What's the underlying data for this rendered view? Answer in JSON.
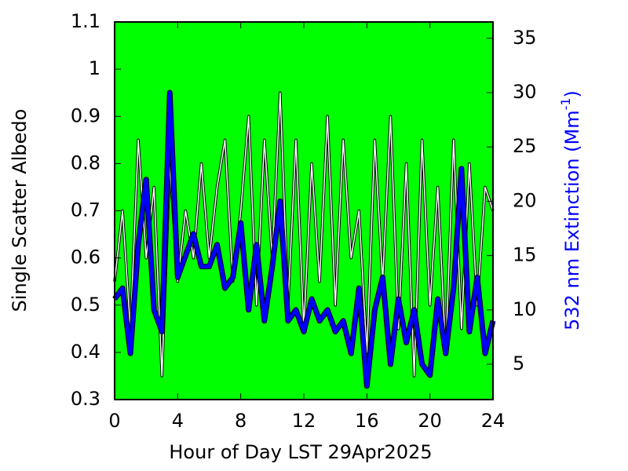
{
  "chart_data": {
    "type": "line",
    "xlabel": "Hour of Day LST 29Apr2025",
    "ylabel": "Single Scatter Albedo",
    "y2label": {
      "text": "532 nm Extinction (Mm",
      "sup": "-1",
      "end": ")"
    },
    "background": "#00ff00",
    "x": [
      0,
      0.5,
      1,
      1.5,
      2,
      2.5,
      3,
      3.5,
      4,
      4.5,
      5,
      5.5,
      6,
      6.5,
      7,
      7.5,
      8,
      8.5,
      9,
      9.5,
      10,
      10.5,
      11,
      11.5,
      12,
      12.5,
      13,
      13.5,
      14,
      14.5,
      15,
      15.5,
      16,
      16.5,
      17,
      17.5,
      18,
      18.5,
      19,
      19.5,
      20,
      20.5,
      21,
      21.5,
      22,
      22.5,
      23,
      23.5,
      24
    ],
    "xlim": [
      0,
      24
    ],
    "xticks": [
      0,
      4,
      8,
      12,
      16,
      20,
      24
    ],
    "ylim": [
      0.3,
      1.1
    ],
    "yticks": [
      0.3,
      0.4,
      0.5,
      0.6,
      0.7,
      0.8,
      0.9,
      1,
      1.1
    ],
    "y2lim": [
      1.75,
      36.5
    ],
    "y2ticks": [
      5,
      10,
      15,
      20,
      25,
      30,
      35
    ],
    "series": [
      {
        "color": "#ffffff",
        "values": [
          0.55,
          0.7,
          0.45,
          0.85,
          0.6,
          0.75,
          0.35,
          0.8,
          0.55,
          0.7,
          0.6,
          0.8,
          0.6,
          0.75,
          0.85,
          0.55,
          0.7,
          0.9,
          0.5,
          0.85,
          0.6,
          0.95,
          0.5,
          0.85,
          0.45,
          0.8,
          0.55,
          0.9,
          0.5,
          0.85,
          0.6,
          0.7,
          0.4,
          0.85,
          0.55,
          0.9,
          0.45,
          0.8,
          0.35,
          0.85,
          0.5,
          0.75,
          0.4,
          0.85,
          0.45,
          0.8,
          0.5,
          0.75,
          0.7
        ]
      },
      {
        "color": "#0000ff",
        "axis": "y2",
        "values": [
          11,
          12,
          6,
          16,
          22,
          10,
          8,
          30,
          13,
          15,
          17,
          14,
          14,
          16,
          12,
          13,
          18,
          10,
          16,
          9,
          14,
          20,
          9,
          10,
          8,
          11,
          9,
          10,
          8,
          9,
          6,
          12,
          3,
          10,
          13,
          5,
          11,
          7,
          10,
          5,
          4,
          11,
          6,
          12,
          23,
          8,
          13,
          6,
          9
        ]
      }
    ]
  }
}
